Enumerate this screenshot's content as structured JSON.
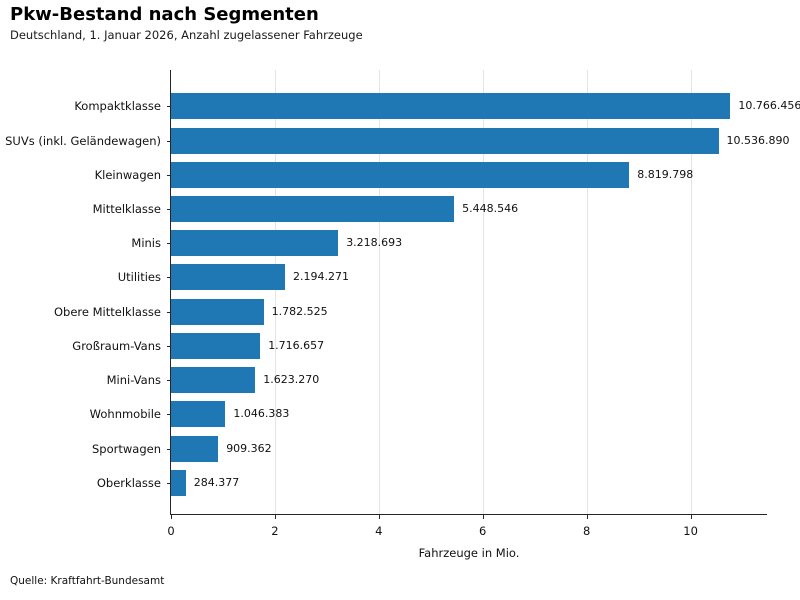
{
  "header": {
    "title": "Pkw-Bestand nach Segmenten",
    "subtitle": "Deutschland, 1. Januar 2026, Anzahl zugelassener Fahrzeuge"
  },
  "footer": {
    "source": "Quelle: Kraftfahrt-Bundesamt"
  },
  "chart_data": {
    "type": "bar",
    "orientation": "horizontal",
    "title": "Pkw-Bestand nach Segmenten",
    "subtitle": "Deutschland, 1. Januar 2026, Anzahl zugelassener Fahrzeuge",
    "xlabel": "Fahrzeuge in Mio.",
    "ylabel": "",
    "categories": [
      "Kompaktklasse",
      "SUVs (inkl. Geländewagen)",
      "Kleinwagen",
      "Mittelklasse",
      "Minis",
      "Utilities",
      "Obere Mittelklasse",
      "Großraum-Vans",
      "Mini-Vans",
      "Wohnmobile",
      "Sportwagen",
      "Oberklasse"
    ],
    "values": [
      10766456,
      10536890,
      8819798,
      5448546,
      3218693,
      2194271,
      1782525,
      1716657,
      1623270,
      1046383,
      909362,
      284377
    ],
    "value_labels": [
      "10.766.456",
      "10.536.890",
      "8.819.798",
      "5.448.546",
      "3.218.693",
      "2.194.271",
      "1.782.525",
      "1.716.657",
      "1.623.270",
      "1.046.383",
      "909.362",
      "284.377"
    ],
    "unit_divisor": 1000000,
    "xlim": [
      0,
      11.49
    ],
    "xticks": [
      0,
      2,
      4,
      6,
      8,
      10
    ],
    "xtick_labels": [
      "0",
      "2",
      "4",
      "6",
      "8",
      "10"
    ],
    "grid": "vertical",
    "legend": "none",
    "bar_color": "#1f77b4",
    "gridline_color": "#e4e4e4",
    "spine_color": "#262626",
    "source": "Quelle: Kraftfahrt-Bundesamt"
  }
}
